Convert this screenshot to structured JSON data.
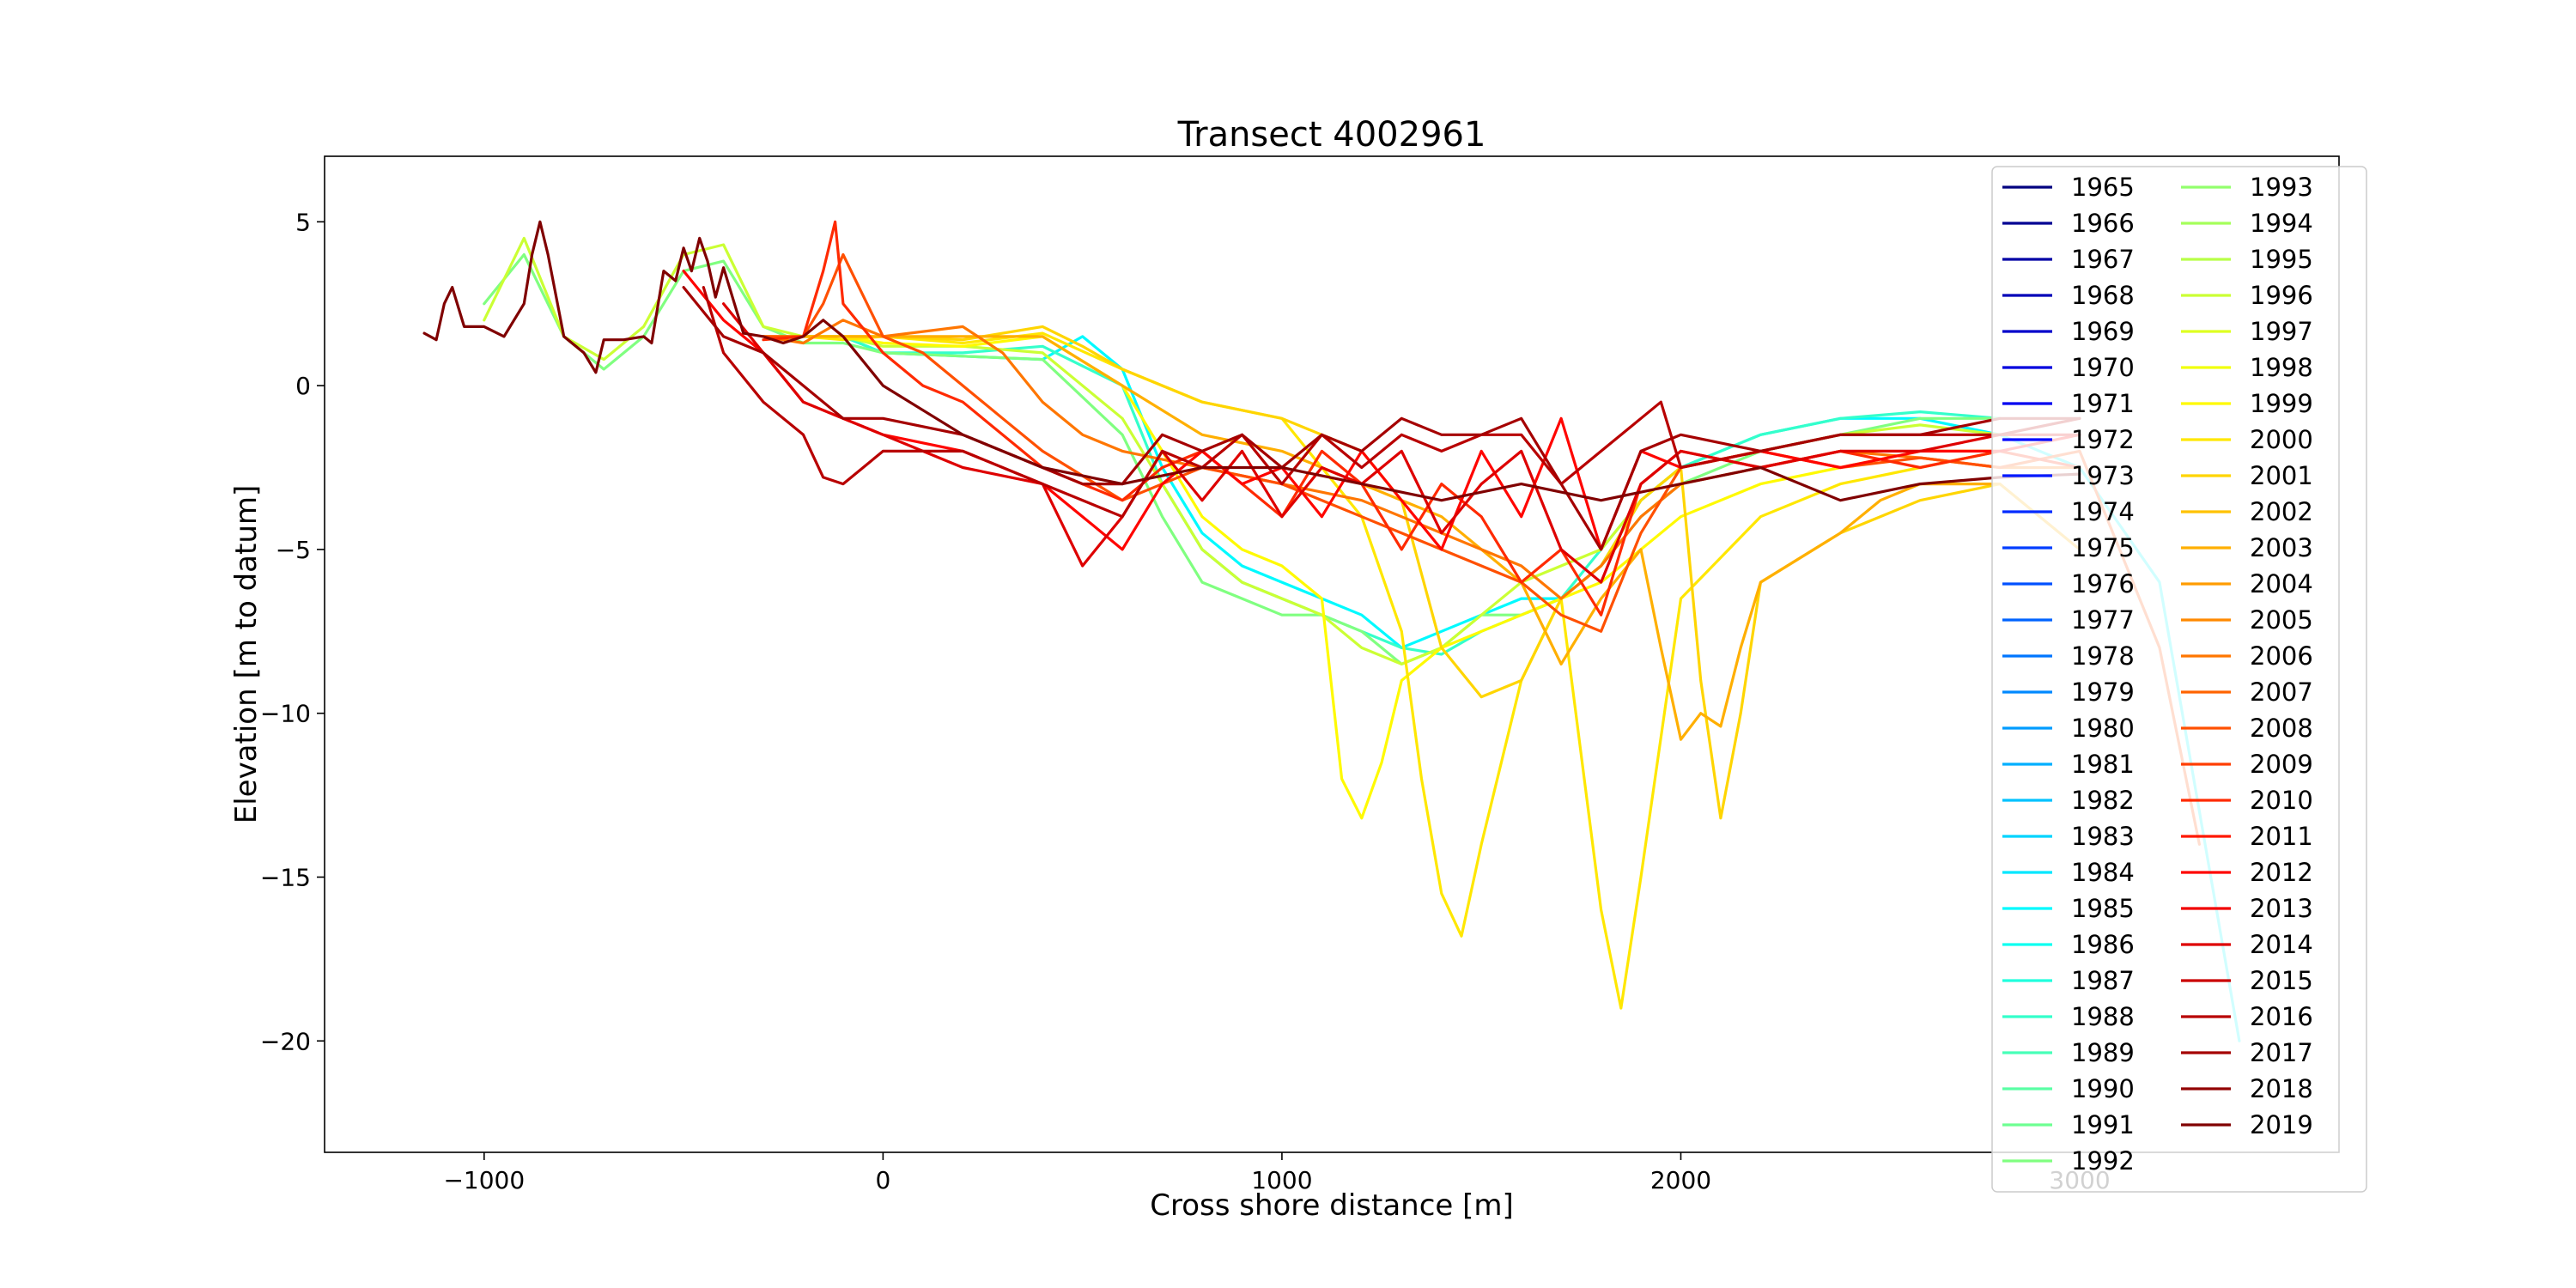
{
  "chart_data": {
    "type": "line",
    "title": "Transect 4002961",
    "xlabel": "Cross shore distance [m]",
    "ylabel": "Elevation [m to datum]",
    "xlim": [
      -1400,
      3650
    ],
    "ylim": [
      -23.4,
      7.0
    ],
    "xticks": [
      -1000,
      0,
      1000,
      2000,
      3000
    ],
    "xtick_labels": [
      "−1000",
      "0",
      "1000",
      "2000",
      "3000"
    ],
    "yticks": [
      5,
      0,
      -5,
      -10,
      -15,
      -20
    ],
    "ytick_labels": [
      "5",
      "0",
      "−5",
      "−10",
      "−15",
      "−20"
    ],
    "grid": false,
    "legend_position": "upper-right",
    "legend_columns": 2,
    "colormap": "jet",
    "series_names": [
      "1965",
      "1966",
      "1967",
      "1968",
      "1969",
      "1970",
      "1971",
      "1972",
      "1973",
      "1974",
      "1975",
      "1976",
      "1977",
      "1978",
      "1979",
      "1980",
      "1981",
      "1982",
      "1983",
      "1984",
      "1985",
      "1986",
      "1987",
      "1988",
      "1989",
      "1990",
      "1991",
      "1992",
      "1993",
      "1994",
      "1995",
      "1996",
      "1997",
      "1998",
      "1999",
      "2000",
      "2001",
      "2002",
      "2003",
      "2004",
      "2005",
      "2006",
      "2007",
      "2008",
      "2009",
      "2010",
      "2011",
      "2012",
      "2013",
      "2014",
      "2015",
      "2016",
      "2017",
      "2018",
      "2019"
    ],
    "series": [
      {
        "name": "1985",
        "x": [
          -100,
          0,
          200,
          400,
          500,
          600,
          700,
          800,
          900,
          1000,
          1100,
          1200,
          1300,
          1400,
          1500,
          1600,
          1700,
          1800,
          1900,
          2000,
          2200,
          2400,
          2600,
          2800,
          3000,
          3200,
          3400
        ],
        "y": [
          1.5,
          1.0,
          0.9,
          0.8,
          1.5,
          0.5,
          -2.5,
          -4.5,
          -5.5,
          -6.0,
          -6.5,
          -7.0,
          -8.0,
          -7.5,
          -7.0,
          -6.5,
          -6.5,
          -5.5,
          -3.5,
          -2.5,
          -1.5,
          -1.0,
          -1.0,
          -1.5,
          -2.5,
          -6.0,
          -20.0
        ]
      },
      {
        "name": "1988",
        "x": [
          -200,
          -100,
          0,
          200,
          400,
          600,
          700,
          800,
          900,
          1000,
          1100,
          1200,
          1300,
          1400,
          1500,
          1600,
          1700,
          1800,
          1900,
          2000,
          2200,
          2400,
          2600,
          2800
        ],
        "y": [
          1.5,
          1.5,
          1.0,
          1.0,
          1.2,
          0.0,
          -3.0,
          -5.0,
          -6.0,
          -6.5,
          -7.0,
          -7.5,
          -8.0,
          -8.2,
          -7.5,
          -7.0,
          -6.5,
          -5.0,
          -3.5,
          -2.5,
          -1.5,
          -1.0,
          -0.8,
          -1.0
        ]
      },
      {
        "name": "1992",
        "x": [
          -1000,
          -900,
          -800,
          -700,
          -600,
          -500,
          -400,
          -300,
          -200,
          -100,
          0,
          200,
          400,
          600,
          700,
          800,
          900,
          1000,
          1100,
          1200,
          1300,
          1400,
          1500,
          1600,
          1700,
          1800,
          1900,
          2000,
          2200,
          2400,
          2600,
          2800
        ],
        "y": [
          2.5,
          4.0,
          1.5,
          0.5,
          1.5,
          3.5,
          3.8,
          1.8,
          1.3,
          1.3,
          1.0,
          0.9,
          0.8,
          -1.5,
          -4.0,
          -6.0,
          -6.5,
          -7.0,
          -7.0,
          -7.5,
          -8.5,
          -8.0,
          -7.0,
          -7.0,
          -6.5,
          -5.5,
          -4.0,
          -3.0,
          -2.0,
          -1.5,
          -1.0,
          -1.0
        ]
      },
      {
        "name": "1996",
        "x": [
          -1000,
          -900,
          -850,
          -800,
          -700,
          -600,
          -500,
          -400,
          -300,
          -200,
          -100,
          0,
          200,
          400,
          600,
          700,
          800,
          900,
          1000,
          1100,
          1200,
          1300,
          1400,
          1500,
          1600,
          1700,
          1800,
          1900,
          2000,
          2200,
          2400,
          2600,
          2800
        ],
        "y": [
          2.0,
          4.5,
          3.0,
          1.5,
          0.8,
          1.8,
          4.0,
          4.3,
          1.8,
          1.5,
          1.5,
          1.2,
          1.2,
          1.0,
          -1.0,
          -3.0,
          -5.0,
          -6.0,
          -6.5,
          -7.0,
          -8.0,
          -8.5,
          -8.0,
          -7.0,
          -6.0,
          -5.5,
          -5.0,
          -3.5,
          -2.5,
          -2.0,
          -1.5,
          -1.2,
          -1.5
        ]
      },
      {
        "name": "1999",
        "x": [
          -300,
          -100,
          0,
          200,
          400,
          600,
          700,
          800,
          900,
          1000,
          1100,
          1150,
          1200,
          1250,
          1300,
          1400,
          1500,
          1600,
          1700,
          1800,
          1900,
          2000,
          2200,
          2400,
          2600,
          2800
        ],
        "y": [
          1.5,
          1.5,
          1.3,
          1.2,
          1.5,
          0.0,
          -2.0,
          -4.0,
          -5.0,
          -5.5,
          -6.5,
          -12.0,
          -13.2,
          -11.5,
          -9.0,
          -8.0,
          -7.5,
          -7.0,
          -6.5,
          -6.0,
          -5.0,
          -4.0,
          -3.0,
          -2.5,
          -2.0,
          -2.0
        ]
      },
      {
        "name": "2000",
        "x": [
          -200,
          -100,
          0,
          200,
          400,
          600,
          800,
          1000,
          1100,
          1200,
          1300,
          1350,
          1400,
          1450,
          1500,
          1600,
          1700,
          1800,
          1850,
          1900,
          2000,
          2200,
          2400,
          2600,
          2800
        ],
        "y": [
          1.5,
          1.4,
          1.5,
          1.3,
          1.6,
          0.5,
          -0.5,
          -1.0,
          -2.5,
          -4.0,
          -7.5,
          -12.0,
          -15.5,
          -16.8,
          -14.0,
          -9.0,
          -6.5,
          -16.0,
          -19.0,
          -15.0,
          -6.5,
          -4.0,
          -3.0,
          -2.5,
          -2.0
        ]
      },
      {
        "name": "2001",
        "x": [
          -100,
          0,
          200,
          400,
          500,
          600,
          800,
          1000,
          1200,
          1300,
          1400,
          1500,
          1600,
          1700,
          1800,
          1900,
          2000,
          2050,
          2100,
          2150,
          2200,
          2400,
          2600,
          2800
        ],
        "y": [
          1.5,
          1.5,
          1.4,
          1.8,
          1.2,
          0.5,
          -0.5,
          -1.0,
          -2.0,
          -3.5,
          -8.0,
          -9.5,
          -9.0,
          -6.5,
          -5.5,
          -3.5,
          -2.5,
          -9.0,
          -13.2,
          -10.0,
          -6.0,
          -4.5,
          -3.5,
          -3.0
        ]
      },
      {
        "name": "2003",
        "x": [
          -200,
          -100,
          0,
          200,
          400,
          600,
          800,
          1000,
          1200,
          1400,
          1600,
          1700,
          1800,
          1900,
          1950,
          2000,
          2050,
          2100,
          2150,
          2200,
          2400,
          2500,
          2600,
          2800,
          3000
        ],
        "y": [
          1.5,
          1.5,
          1.5,
          1.5,
          1.5,
          0.0,
          -1.5,
          -2.0,
          -3.0,
          -4.0,
          -6.0,
          -8.5,
          -6.5,
          -5.0,
          -8.0,
          -10.8,
          -10.0,
          -10.4,
          -8.0,
          -6.0,
          -4.5,
          -3.5,
          -3.0,
          -3.0,
          -5.0
        ]
      },
      {
        "name": "2006",
        "x": [
          -300,
          -200,
          -100,
          0,
          200,
          300,
          400,
          500,
          600,
          800,
          1000,
          1200,
          1400,
          1500,
          1600,
          1700,
          1800,
          1900,
          2000,
          2200,
          2400,
          2600,
          2800,
          3000
        ],
        "y": [
          1.5,
          1.3,
          2.0,
          1.5,
          1.8,
          1.0,
          -0.5,
          -1.5,
          -2.0,
          -2.5,
          -3.0,
          -3.5,
          -4.5,
          -5.0,
          -5.5,
          -6.5,
          -5.5,
          -4.0,
          -3.0,
          -2.5,
          -2.0,
          -2.2,
          -2.5,
          -2.5
        ]
      },
      {
        "name": "2008",
        "x": [
          -300,
          -200,
          -150,
          -100,
          0,
          100,
          200,
          300,
          400,
          600,
          800,
          1000,
          1200,
          1400,
          1600,
          1700,
          1800,
          1900,
          2000,
          2200,
          2400,
          2600,
          2800,
          3000,
          3200,
          3300
        ],
        "y": [
          1.5,
          1.5,
          2.5,
          4.0,
          1.5,
          1.0,
          0.0,
          -1.0,
          -2.0,
          -3.5,
          -2.5,
          -3.0,
          -4.0,
          -5.0,
          -6.0,
          -7.0,
          -7.5,
          -4.5,
          -2.5,
          -2.0,
          -2.5,
          -2.2,
          -2.5,
          -2.0,
          -8.0,
          -14.0
        ]
      },
      {
        "name": "2010",
        "x": [
          -300,
          -200,
          -150,
          -120,
          -100,
          0,
          100,
          200,
          400,
          600,
          700,
          800,
          900,
          1000,
          1100,
          1200,
          1300,
          1400,
          1500,
          1600,
          1700,
          1800,
          1900,
          2000,
          2200,
          2400,
          2600,
          2800,
          3000
        ],
        "y": [
          1.4,
          1.5,
          3.5,
          5.0,
          2.5,
          1.0,
          0.0,
          -0.5,
          -2.5,
          -3.5,
          -2.5,
          -2.0,
          -3.0,
          -4.0,
          -2.0,
          -3.0,
          -5.0,
          -3.0,
          -4.0,
          -6.0,
          -5.0,
          -7.0,
          -3.0,
          -2.0,
          -2.5,
          -2.0,
          -2.5,
          -2.0,
          -2.5
        ]
      },
      {
        "name": "2012",
        "x": [
          -500,
          -400,
          -300,
          -200,
          -100,
          0,
          200,
          400,
          500,
          600,
          700,
          800,
          900,
          1000,
          1100,
          1200,
          1300,
          1400,
          1500,
          1600,
          1700,
          1800,
          1900,
          2000,
          2200,
          2400,
          2600,
          2800,
          3000
        ],
        "y": [
          3.5,
          2.0,
          1.0,
          -0.5,
          -1.0,
          -1.5,
          -2.0,
          -3.0,
          -4.0,
          -5.0,
          -3.0,
          -2.0,
          -3.0,
          -2.5,
          -4.0,
          -2.0,
          -3.5,
          -5.0,
          -2.0,
          -4.0,
          -1.0,
          -5.0,
          -2.0,
          -2.5,
          -2.0,
          -2.5,
          -2.0,
          -2.0,
          -1.5
        ]
      },
      {
        "name": "2014",
        "x": [
          -400,
          -300,
          -200,
          -100,
          0,
          200,
          400,
          500,
          600,
          700,
          800,
          900,
          1000,
          1100,
          1200,
          1300,
          1400,
          1500,
          1600,
          1700,
          1800,
          1900,
          2000,
          2200,
          2400,
          2600,
          2800,
          3000
        ],
        "y": [
          2.5,
          1.0,
          -0.5,
          -1.0,
          -1.5,
          -2.5,
          -3.0,
          -5.5,
          -4.0,
          -2.0,
          -3.5,
          -2.0,
          -4.0,
          -2.5,
          -3.0,
          -2.0,
          -4.5,
          -3.0,
          -2.0,
          -5.0,
          -6.0,
          -3.0,
          -2.0,
          -2.5,
          -2.0,
          -2.0,
          -1.5,
          -1.5
        ]
      },
      {
        "name": "2016",
        "x": [
          -450,
          -400,
          -300,
          -200,
          -150,
          -100,
          0,
          200,
          400,
          600,
          700,
          800,
          900,
          1000,
          1100,
          1200,
          1300,
          1400,
          1500,
          1600,
          1700,
          1800,
          1900,
          1950,
          2000,
          2200,
          2400,
          2600,
          2800,
          3000
        ],
        "y": [
          3.0,
          1.0,
          -0.5,
          -1.5,
          -2.8,
          -3.0,
          -2.0,
          -2.0,
          -3.0,
          -4.0,
          -2.0,
          -2.5,
          -1.5,
          -3.0,
          -1.5,
          -2.5,
          -1.5,
          -2.0,
          -1.5,
          -1.5,
          -3.0,
          -2.0,
          -1.0,
          -0.5,
          -2.5,
          -2.0,
          -1.5,
          -1.5,
          -1.5,
          -1.0
        ]
      },
      {
        "name": "2017",
        "x": [
          -500,
          -400,
          -300,
          -200,
          -100,
          0,
          200,
          400,
          500,
          600,
          700,
          800,
          900,
          1000,
          1100,
          1200,
          1300,
          1400,
          1500,
          1600,
          1700,
          1800,
          1900,
          2000,
          2200,
          2400,
          2600,
          2800,
          3000
        ],
        "y": [
          3.0,
          1.5,
          1.0,
          0.0,
          -1.0,
          -1.0,
          -1.5,
          -2.5,
          -3.0,
          -3.0,
          -1.5,
          -2.0,
          -1.5,
          -2.5,
          -1.5,
          -2.0,
          -1.0,
          -1.5,
          -1.5,
          -1.0,
          -3.0,
          -5.0,
          -2.0,
          -1.5,
          -2.0,
          -1.5,
          -1.5,
          -1.0,
          -1.0
        ]
      },
      {
        "name": "2019",
        "x": [
          -1150,
          -1120,
          -1100,
          -1080,
          -1050,
          -1000,
          -950,
          -900,
          -880,
          -860,
          -840,
          -800,
          -750,
          -720,
          -700,
          -650,
          -600,
          -580,
          -550,
          -520,
          -500,
          -480,
          -460,
          -440,
          -420,
          -400,
          -350,
          -300,
          -250,
          -200,
          -150,
          -100,
          0,
          200,
          400,
          600,
          800,
          1000,
          1200,
          1400,
          1600,
          1800,
          2000,
          2200,
          2400,
          2600,
          2800,
          3000
        ],
        "y": [
          1.6,
          1.4,
          2.5,
          3.0,
          1.8,
          1.8,
          1.5,
          2.5,
          4.0,
          5.0,
          4.0,
          1.5,
          1.0,
          0.4,
          1.4,
          1.4,
          1.5,
          1.3,
          3.5,
          3.2,
          4.2,
          3.5,
          4.5,
          3.8,
          2.7,
          3.6,
          1.6,
          1.5,
          1.3,
          1.5,
          2.0,
          1.5,
          0.0,
          -1.5,
          -2.5,
          -3.0,
          -2.5,
          -2.5,
          -3.0,
          -3.5,
          -3.0,
          -3.5,
          -3.0,
          -2.5,
          -3.5,
          -3.0,
          -2.8,
          -2.7
        ]
      }
    ]
  }
}
